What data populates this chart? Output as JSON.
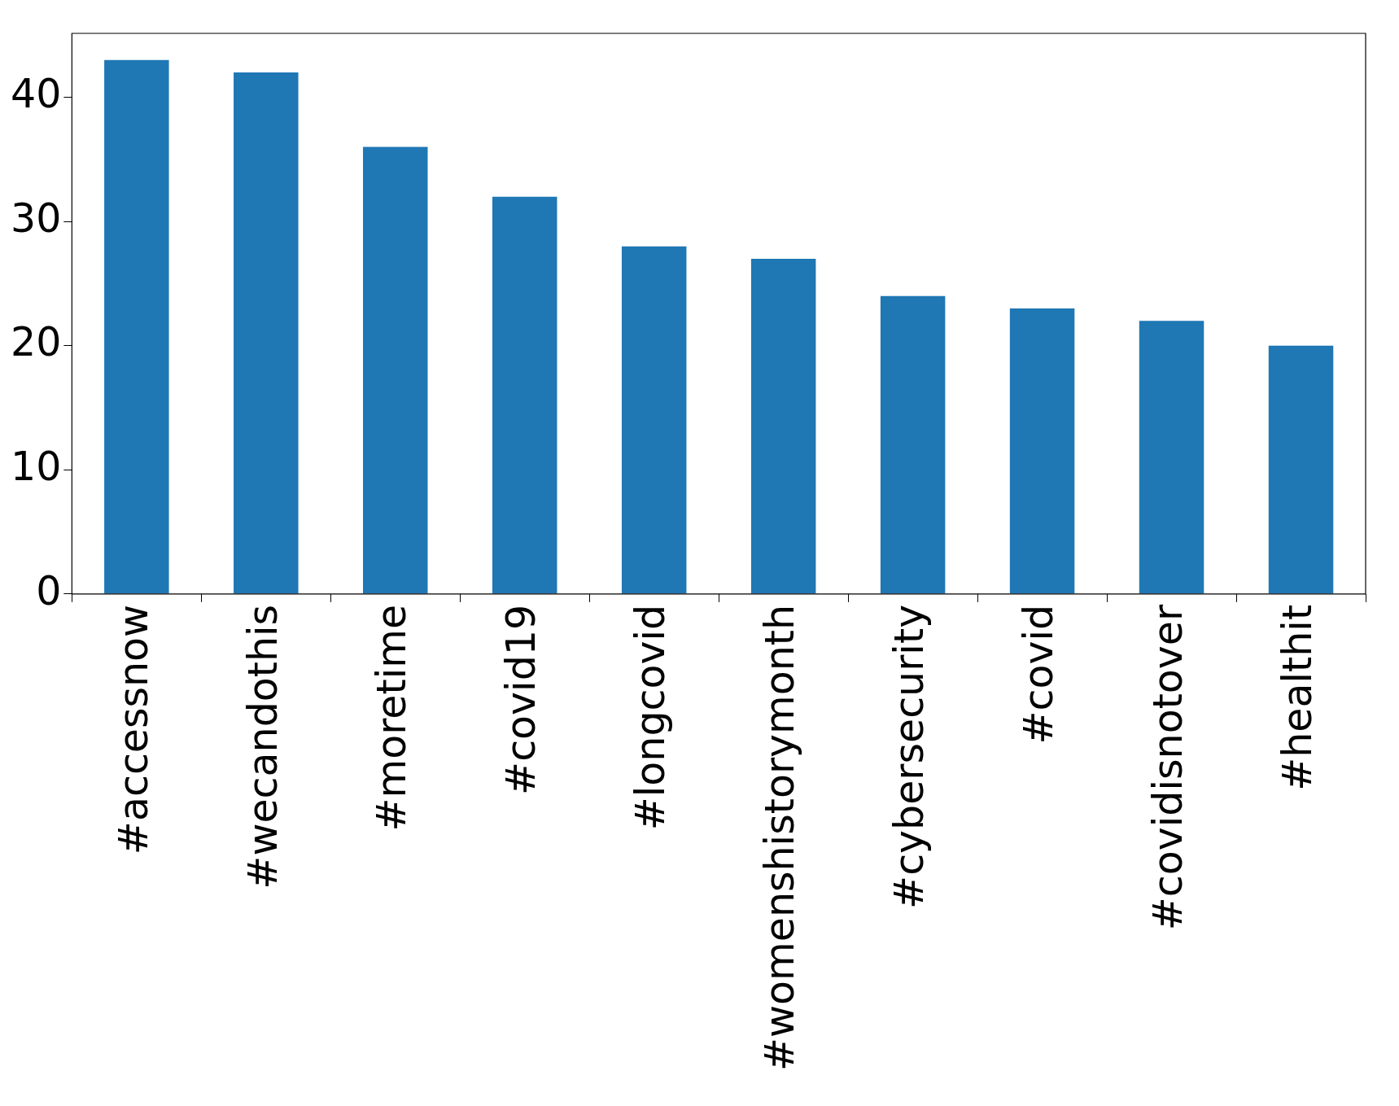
{
  "chart_data": {
    "type": "bar",
    "categories": [
      "#accessnow",
      "#wecandothis",
      "#moretime",
      "#covid19",
      "#longcovid",
      "#womenshistorymonth",
      "#cybersecurity",
      "#covid",
      "#covidisnotover",
      "#healthit"
    ],
    "values": [
      43,
      42,
      36,
      32,
      28,
      27,
      24,
      23,
      22,
      20
    ],
    "color": "#1f77b4",
    "ylim": [
      0,
      45.15
    ],
    "yticks": [
      0,
      10,
      20,
      30,
      40
    ],
    "grid": false,
    "legend": false
  }
}
